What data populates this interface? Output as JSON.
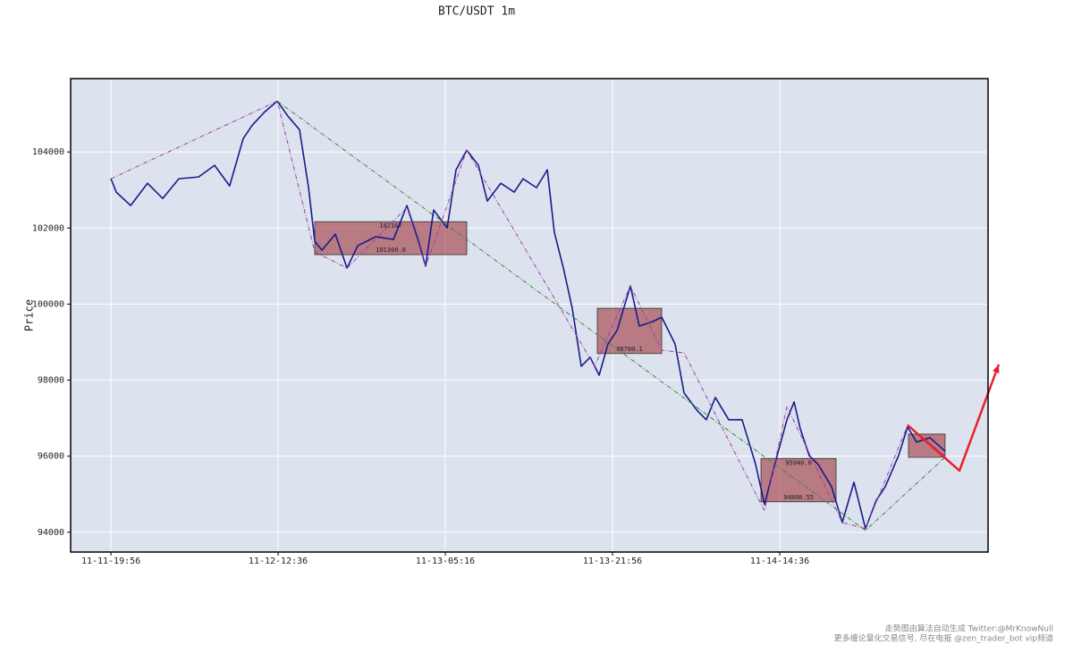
{
  "chart_data": {
    "type": "line",
    "title": "BTC/USDT 1m",
    "ylabel": "Price",
    "xlim": [
      -241,
      5246
    ],
    "ylim": [
      93480,
      105930
    ],
    "xticks": [
      {
        "value": 0,
        "label": "11-11-19:56"
      },
      {
        "value": 1000,
        "label": "11-12-12:36"
      },
      {
        "value": 2000,
        "label": "11-13-05:16"
      },
      {
        "value": 3000,
        "label": "11-13-21:56"
      },
      {
        "value": 4000,
        "label": "11-14-14:36"
      }
    ],
    "yticks": [
      94000,
      96000,
      98000,
      100000,
      102000,
      104000
    ],
    "grid": true,
    "series": [
      {
        "color": "#1a1a8c",
        "style": "solid",
        "width": 1.6,
        "x": [
          0,
          32,
          118,
          219,
          310,
          406,
          524,
          620,
          710,
          791,
          845,
          920,
          995,
          1059,
          1128,
          1182,
          1219,
          1262,
          1342,
          1412,
          1476,
          1583,
          1690,
          1770,
          1840,
          1882,
          1930,
          2011,
          2064,
          2128,
          2198,
          2251,
          2332,
          2412,
          2465,
          2545,
          2610,
          2652,
          2706,
          2759,
          2813,
          2866,
          2920,
          2973,
          3027,
          3107,
          3160,
          3241,
          3294,
          3374,
          3428,
          3508,
          3561,
          3615,
          3695,
          3775,
          3856,
          3909,
          3963,
          4043,
          4086,
          4123,
          4176,
          4230,
          4310,
          4374,
          4444,
          4513,
          4578,
          4631,
          4711,
          4765,
          4818,
          4898,
          4989
        ],
        "values": [
          103296,
          102944,
          102592,
          103178,
          102779,
          103296,
          103343,
          103648,
          103108,
          104352,
          104704,
          105056,
          105338,
          104939,
          104587,
          103061,
          101653,
          101418,
          101840,
          100948,
          101535,
          101770,
          101700,
          102592,
          101653,
          100995,
          102474,
          102005,
          103531,
          104047,
          103648,
          102709,
          103178,
          102944,
          103296,
          103061,
          103531,
          101887,
          100948,
          99892,
          98366,
          98601,
          98131,
          98953,
          99305,
          100479,
          99423,
          99540,
          99657,
          98953,
          97662,
          97192,
          96958,
          97545,
          96958,
          96958,
          95784,
          94728,
          95667,
          96958,
          97427,
          96723,
          96019,
          95784,
          95197,
          94258,
          95315,
          94094,
          94845,
          95197,
          96019,
          96770,
          96371,
          96488,
          96136
        ]
      },
      {
        "color": "#a040a0",
        "style": "dashed",
        "width": 1,
        "x": [
          0,
          995,
          1219,
          1412,
          1770,
          1882,
          2128,
          2893,
          3107,
          3294,
          3428,
          3909,
          4043,
          4374,
          4513,
          4765,
          4989
        ],
        "values": [
          103296,
          105338,
          101371,
          100948,
          102545,
          100995,
          104047,
          98366,
          100479,
          98788,
          98718,
          94563,
          97310,
          94258,
          94094,
          96817,
          96005
        ]
      },
      {
        "color": "#3a8a3a",
        "style": "dashed",
        "width": 1,
        "x": [
          995,
          4513,
          4989
        ],
        "values": [
          105338,
          94047,
          95972
        ]
      },
      {
        "color": "#e8202a",
        "style": "solid",
        "width": 2.5,
        "arrow": true,
        "x": [
          4765,
          5075,
          5310
        ],
        "values": [
          96817,
          95620,
          98413
        ]
      }
    ],
    "zones": [
      {
        "x": [
          1219,
          2128
        ],
        "values": [
          101300,
          102167
        ],
        "value_labels": [
          "101300.0",
          "102167"
        ]
      },
      {
        "x": [
          2909,
          3294
        ],
        "values": [
          98700.1,
          99890
        ],
        "value_labels": [
          "98700.1",
          null
        ]
      },
      {
        "x": [
          3888,
          4337
        ],
        "values": [
          94800.55,
          95940
        ],
        "value_labels": [
          "94800.55",
          "95940.0"
        ]
      },
      {
        "x": [
          4770,
          4989
        ],
        "values": [
          95972,
          96582
        ],
        "value_labels": [
          null,
          null
        ]
      }
    ],
    "zone_color": "#a0343c",
    "footnote": [
      "走势图由算法自动生成  Twitter:@MrKnowNull",
      "更多缠论量化交易信号, 尽在电报 @zen_trader_bot vip频道"
    ]
  }
}
